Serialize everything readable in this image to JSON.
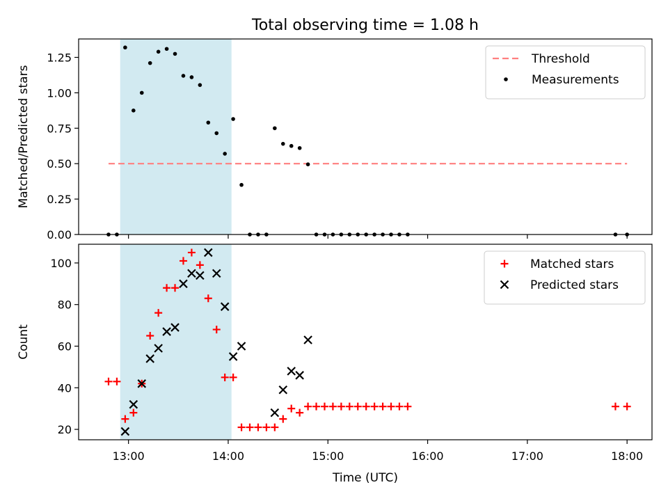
{
  "chart_data": {
    "title": "Total observing time = 1.08 h",
    "xlabel": "Time (UTC)",
    "x_range": [
      "12:30",
      "18:15"
    ],
    "x_ticks": [
      "13:00",
      "14:00",
      "15:00",
      "16:00",
      "17:00",
      "18:00"
    ],
    "highlight_span": {
      "start": "12:55",
      "end": "14:02",
      "color": "#add8e6"
    },
    "panels": [
      {
        "type": "scatter",
        "ylabel": "Matched/Predicted stars",
        "ylim": [
          0,
          1.38
        ],
        "y_ticks": [
          "0.00",
          "0.25",
          "0.50",
          "0.75",
          "1.00",
          "1.25"
        ],
        "legend_position": "upper-right",
        "threshold": {
          "name": "Threshold",
          "value": 0.5,
          "x_start": "12:48",
          "x_end": "18:00",
          "color": "#ff7f7f"
        },
        "series": [
          {
            "name": "Measurements",
            "color": "#000000",
            "marker": "dot",
            "points": [
              [
                "12:48",
                0
              ],
              [
                "12:53",
                0
              ],
              [
                "12:58",
                1.32
              ],
              [
                "13:03",
                0.875
              ],
              [
                "13:08",
                1.0
              ],
              [
                "13:13",
                1.21
              ],
              [
                "13:18",
                1.29
              ],
              [
                "13:23",
                1.31
              ],
              [
                "13:28",
                1.275
              ],
              [
                "13:33",
                1.12
              ],
              [
                "13:38",
                1.11
              ],
              [
                "13:43",
                1.055
              ],
              [
                "13:48",
                0.79
              ],
              [
                "13:53",
                0.715
              ],
              [
                "13:58",
                0.57
              ],
              [
                "14:03",
                0.815
              ],
              [
                "14:08",
                0.35
              ],
              [
                "14:13",
                0
              ],
              [
                "14:18",
                0
              ],
              [
                "14:23",
                0
              ],
              [
                "14:28",
                0.75
              ],
              [
                "14:33",
                0.64
              ],
              [
                "14:38",
                0.625
              ],
              [
                "14:43",
                0.61
              ],
              [
                "14:48",
                0.495
              ],
              [
                "14:53",
                0
              ],
              [
                "14:58",
                0
              ],
              [
                "15:03",
                0
              ],
              [
                "15:08",
                0
              ],
              [
                "15:13",
                0
              ],
              [
                "15:18",
                0
              ],
              [
                "15:23",
                0
              ],
              [
                "15:28",
                0
              ],
              [
                "15:33",
                0
              ],
              [
                "15:38",
                0
              ],
              [
                "15:43",
                0
              ],
              [
                "15:48",
                0
              ],
              [
                "17:53",
                0
              ],
              [
                "18:00",
                0
              ]
            ]
          }
        ]
      },
      {
        "type": "scatter",
        "ylabel": "Count",
        "ylim": [
          15,
          109
        ],
        "y_ticks": [
          "20",
          "40",
          "60",
          "80",
          "100"
        ],
        "legend_position": "upper-right",
        "series": [
          {
            "name": "Matched stars",
            "color": "#ff0000",
            "marker": "plus",
            "points": [
              [
                "12:48",
                43
              ],
              [
                "12:53",
                43
              ],
              [
                "12:58",
                25
              ],
              [
                "13:03",
                28
              ],
              [
                "13:08",
                42
              ],
              [
                "13:13",
                65
              ],
              [
                "13:18",
                76
              ],
              [
                "13:23",
                88
              ],
              [
                "13:28",
                88
              ],
              [
                "13:33",
                101
              ],
              [
                "13:38",
                105
              ],
              [
                "13:43",
                99
              ],
              [
                "13:48",
                83
              ],
              [
                "13:53",
                68
              ],
              [
                "13:58",
                45
              ],
              [
                "14:03",
                45
              ],
              [
                "14:08",
                21
              ],
              [
                "14:13",
                21
              ],
              [
                "14:18",
                21
              ],
              [
                "14:23",
                21
              ],
              [
                "14:28",
                21
              ],
              [
                "14:33",
                25
              ],
              [
                "14:38",
                30
              ],
              [
                "14:43",
                28
              ],
              [
                "14:48",
                31
              ],
              [
                "14:53",
                31
              ],
              [
                "14:58",
                31
              ],
              [
                "15:03",
                31
              ],
              [
                "15:08",
                31
              ],
              [
                "15:13",
                31
              ],
              [
                "15:18",
                31
              ],
              [
                "15:23",
                31
              ],
              [
                "15:28",
                31
              ],
              [
                "15:33",
                31
              ],
              [
                "15:38",
                31
              ],
              [
                "15:43",
                31
              ],
              [
                "15:48",
                31
              ],
              [
                "17:53",
                31
              ],
              [
                "18:00",
                31
              ]
            ]
          },
          {
            "name": "Predicted stars",
            "color": "#000000",
            "marker": "x",
            "points": [
              [
                "12:58",
                19
              ],
              [
                "13:03",
                32
              ],
              [
                "13:08",
                42
              ],
              [
                "13:13",
                54
              ],
              [
                "13:18",
                59
              ],
              [
                "13:23",
                67
              ],
              [
                "13:28",
                69
              ],
              [
                "13:33",
                90
              ],
              [
                "13:38",
                95
              ],
              [
                "13:43",
                94
              ],
              [
                "13:48",
                105
              ],
              [
                "13:53",
                95
              ],
              [
                "13:58",
                79
              ],
              [
                "14:03",
                55
              ],
              [
                "14:08",
                60
              ],
              [
                "14:28",
                28
              ],
              [
                "14:33",
                39
              ],
              [
                "14:38",
                48
              ],
              [
                "14:43",
                46
              ],
              [
                "14:48",
                63
              ]
            ]
          }
        ]
      }
    ]
  }
}
